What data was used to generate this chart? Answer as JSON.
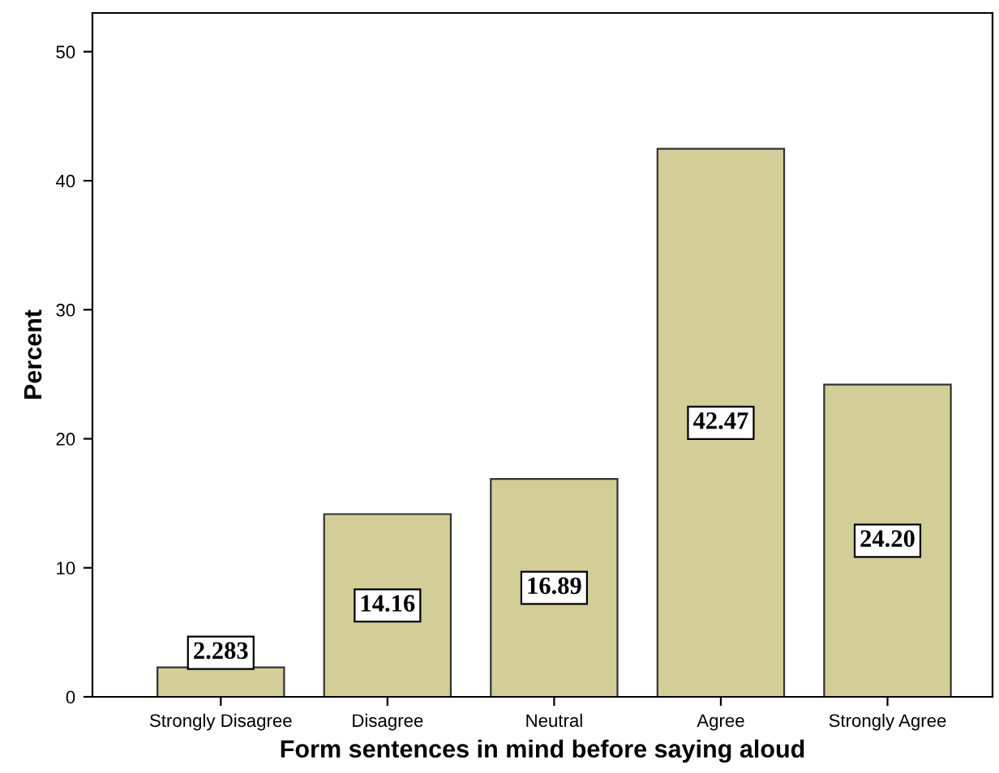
{
  "chart_data": {
    "type": "bar",
    "categories": [
      "Strongly Disagree",
      "Disagree",
      "Neutral",
      "Agree",
      "Strongly Agree"
    ],
    "values": [
      2.283,
      14.16,
      16.89,
      42.47,
      24.2
    ],
    "value_labels": [
      "2.283",
      "14.16",
      "16.89",
      "42.47",
      "24.20"
    ],
    "color": "#d3ce97",
    "xlabel": "Form sentences in mind before saying aloud",
    "ylabel": "Percent",
    "ylim": [
      0,
      53
    ],
    "yticks": [
      0,
      10,
      20,
      30,
      40,
      50
    ],
    "grid": false,
    "legend": false
  }
}
